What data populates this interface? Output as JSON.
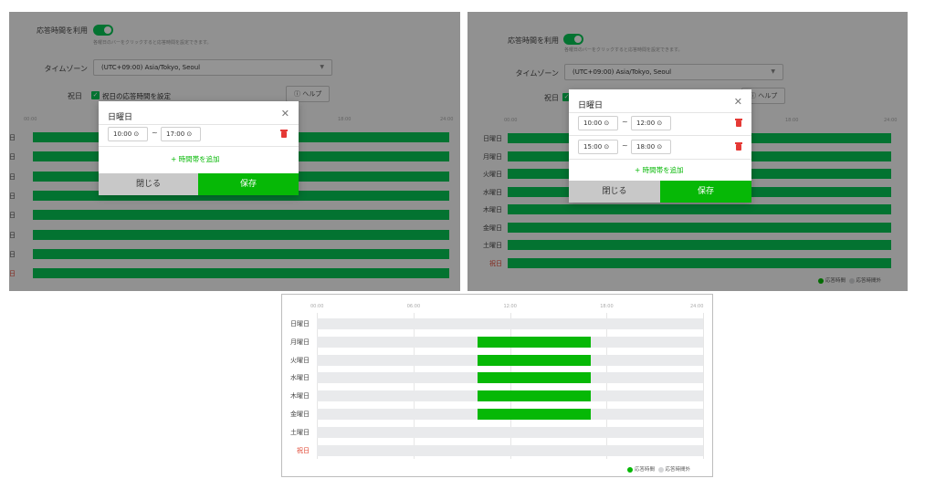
{
  "settings": {
    "use_hours_label": "応答時間を利用",
    "use_hours_hint": "各曜日のバーをクリックすると応答時間を設定できます。",
    "timezone_label": "タイムゾーン",
    "timezone_value": "(UTC+09:00) Asia/Tokyo, Seoul",
    "holiday_label": "祝日",
    "holiday_check_label": "祝日の応答時間を設定",
    "help_label": "ⓘ ヘルプ"
  },
  "ticks": [
    "00:00",
    "06:00",
    "12:00",
    "18:00",
    "24:00"
  ],
  "days": [
    "日曜日",
    "月曜日",
    "火曜日",
    "水曜日",
    "木曜日",
    "金曜日",
    "土曜日",
    "祝日"
  ],
  "left_day_fragments": [
    "日",
    "日",
    "日",
    "日",
    "日",
    "日",
    "日",
    "日"
  ],
  "modal_left": {
    "title": "日曜日",
    "slots": [
      {
        "start": "10:00",
        "end": "17:00"
      }
    ],
    "add_label": "+ 時間帯を追加",
    "close_label": "閉じる",
    "save_label": "保存"
  },
  "modal_right": {
    "title": "日曜日",
    "slots": [
      {
        "start": "10:00",
        "end": "12:00"
      },
      {
        "start": "15:00",
        "end": "18:00"
      }
    ],
    "add_label": "+ 時間帯を追加",
    "close_label": "閉じる",
    "save_label": "保存"
  },
  "legend": {
    "on": "応答時間",
    "off": "応答時間外"
  },
  "weekly_hours": {
    "start_hour": 10,
    "end_hour": 17,
    "active_days": [
      "月曜日",
      "火曜日",
      "水曜日",
      "木曜日",
      "金曜日"
    ]
  },
  "colors": {
    "accent": "#06b806",
    "toggle": "#06c755",
    "holiday": "#e0412d",
    "track": "#e9eaec"
  }
}
